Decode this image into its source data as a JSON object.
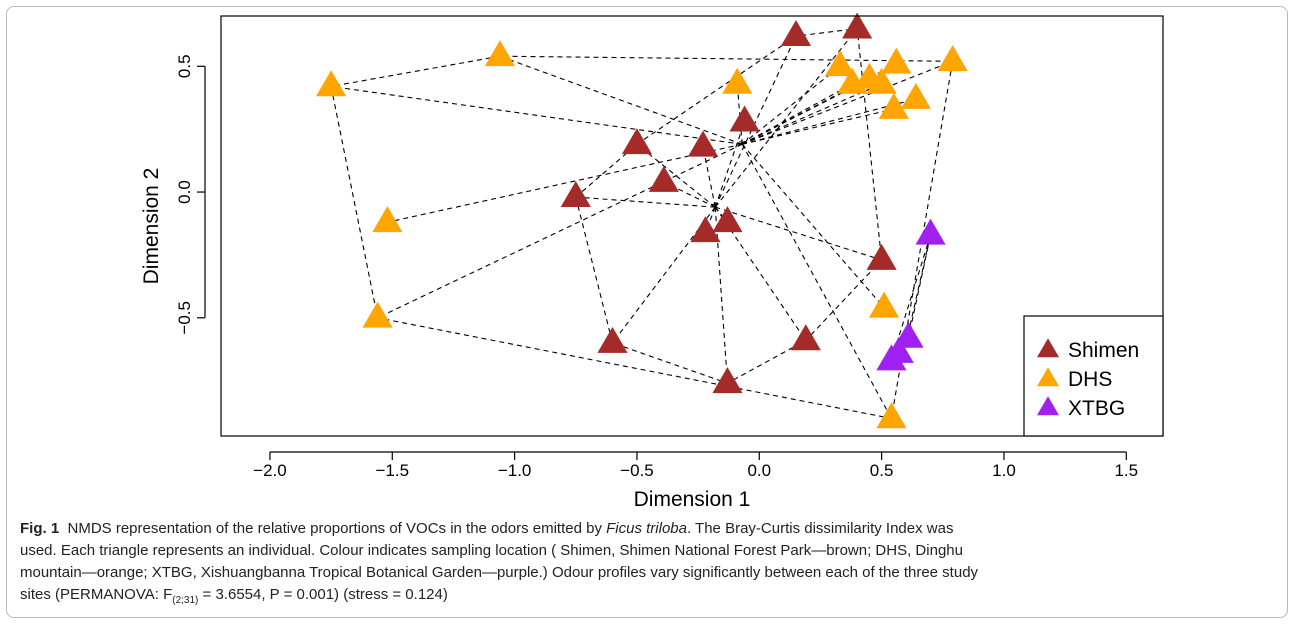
{
  "chart_data": {
    "type": "scatter",
    "title": "",
    "xlabel": "Dimension 1",
    "ylabel": "Dimension 2",
    "xlim": [
      -2.2,
      1.65
    ],
    "ylim": [
      -0.97,
      0.7
    ],
    "x_ticks": [
      "−2.0",
      "−1.5",
      "−1.0",
      "−0.5",
      "0.0",
      "0.5",
      "1.0",
      "1.5"
    ],
    "x_tick_values": [
      -2.0,
      -1.5,
      -1.0,
      -0.5,
      0.0,
      0.5,
      1.0,
      1.5
    ],
    "y_ticks": [
      "−0.5",
      "0.0",
      "0.5"
    ],
    "y_tick_values": [
      -0.5,
      0.0,
      0.5
    ],
    "grid": false,
    "legend_position": "bottom-right",
    "series": [
      {
        "name": "Shimen",
        "color": "#a52a2a",
        "marker": "triangle",
        "centroid": [
          -0.18,
          -0.06
        ],
        "points": [
          [
            0.15,
            0.62
          ],
          [
            0.4,
            0.65
          ],
          [
            -0.06,
            0.28
          ],
          [
            -0.5,
            0.19
          ],
          [
            -0.23,
            0.18
          ],
          [
            -0.39,
            0.04
          ],
          [
            -0.75,
            -0.02
          ],
          [
            -0.13,
            -0.12
          ],
          [
            -0.22,
            -0.16
          ],
          [
            0.5,
            -0.27
          ],
          [
            -0.6,
            -0.6
          ],
          [
            0.19,
            -0.59
          ],
          [
            -0.13,
            -0.76
          ]
        ]
      },
      {
        "name": "DHS",
        "color": "#ffa500",
        "marker": "triangle",
        "centroid": [
          -0.07,
          0.19
        ],
        "points": [
          [
            -1.75,
            0.42
          ],
          [
            -1.06,
            0.54
          ],
          [
            -0.09,
            0.43
          ],
          [
            0.33,
            0.5
          ],
          [
            0.38,
            0.43
          ],
          [
            0.45,
            0.45
          ],
          [
            0.5,
            0.43
          ],
          [
            0.56,
            0.51
          ],
          [
            0.79,
            0.52
          ],
          [
            0.64,
            0.37
          ],
          [
            0.55,
            0.33
          ],
          [
            -1.52,
            -0.12
          ],
          [
            -1.56,
            -0.5
          ],
          [
            0.51,
            -0.46
          ],
          [
            0.54,
            -0.9
          ]
        ]
      },
      {
        "name": "XTBG",
        "color": "#a020f0",
        "marker": "triangle",
        "centroid": [
          0.6,
          -0.6
        ],
        "points": [
          [
            0.7,
            -0.17
          ],
          [
            0.61,
            -0.58
          ],
          [
            0.57,
            -0.64
          ],
          [
            0.54,
            -0.67
          ]
        ]
      }
    ]
  },
  "caption": {
    "label": "Fig. 1",
    "line1_pre": "NMDS representation of the relative proportions of VOCs in the odors emitted by",
    "species": "Ficus triloba",
    "line1_post": ". The Bray-Curtis dissimilarity Index was",
    "line2": "used. Each triangle represents an individual. Colour indicates sampling location ( Shimen, Shimen National Forest Park—brown; DHS, Dinghu",
    "line3": "mountain—orange; XTBG, Xishuangbanna Tropical Botanical Garden—purple.) Odour profiles vary significantly between each of the three study",
    "line4_pre": "sites (PERMANOVA: F",
    "line4_sub": "(2;31)",
    "line4_post": " = 3.6554, P = 0.001) (stress = 0.124)"
  }
}
